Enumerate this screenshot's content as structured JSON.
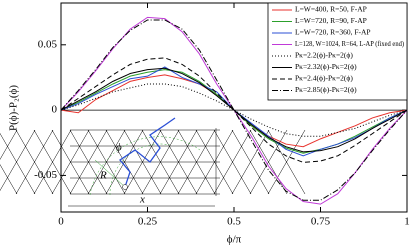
{
  "chart_data": {
    "type": "line",
    "xlabel": "ϕ/π",
    "ylabel": "P(ϕ)-P₂(ϕ)",
    "x": [
      0,
      0.05,
      0.1,
      0.15,
      0.2,
      0.25,
      0.3,
      0.35,
      0.4,
      0.45,
      0.5,
      0.55,
      0.6,
      0.65,
      0.7,
      0.75,
      0.8,
      0.85,
      0.9,
      0.95,
      1
    ],
    "xlim": [
      0,
      1
    ],
    "xticks": [
      0,
      0.25,
      0.5,
      0.75,
      1
    ],
    "ylim": [
      -0.078,
      0.082
    ],
    "yticks": [
      -0.05,
      0,
      0.05
    ],
    "legend": "upper right",
    "annotations": [
      "ϕ",
      "R",
      "x"
    ],
    "series": [
      {
        "name": "L=W=400, R=50, F-AP",
        "color": "#e8322c",
        "dash": "solid",
        "values": [
          0,
          -0.002,
          0.008,
          0.015,
          0.022,
          0.025,
          0.027,
          0.024,
          0.02,
          0.012,
          0,
          -0.012,
          -0.02,
          -0.026,
          -0.028,
          -0.022,
          -0.017,
          -0.012,
          -0.006,
          -0.002,
          0
        ]
      },
      {
        "name": "L=W=720, R=90, F-AP",
        "color": "#2ca02c",
        "dash": "solid",
        "values": [
          0,
          0.006,
          0.013,
          0.02,
          0.026,
          0.029,
          0.031,
          0.029,
          0.022,
          0.012,
          0,
          -0.012,
          -0.022,
          -0.029,
          -0.033,
          -0.03,
          -0.026,
          -0.02,
          -0.013,
          -0.006,
          0
        ]
      },
      {
        "name": "L=W=720, R=360, F-AP",
        "color": "#2b4fd6",
        "dash": "solid",
        "values": [
          0,
          0.005,
          0.012,
          0.018,
          0.024,
          0.026,
          0.033,
          0.025,
          0.02,
          0.014,
          0,
          -0.01,
          -0.02,
          -0.03,
          -0.035,
          -0.03,
          -0.026,
          -0.021,
          -0.014,
          -0.006,
          0
        ]
      },
      {
        "name": "L=128, W=1024, R=64, L-AP (fixed end)",
        "color": "#c03ad8",
        "dash": "solid",
        "values": [
          0,
          0.014,
          0.03,
          0.047,
          0.062,
          0.071,
          0.07,
          0.06,
          0.043,
          0.02,
          0,
          -0.02,
          -0.043,
          -0.06,
          -0.07,
          -0.072,
          -0.064,
          -0.048,
          -0.03,
          -0.014,
          0
        ]
      },
      {
        "name": "Pκ=2.2(ϕ)-Pκ=2(ϕ)",
        "color": "#000000",
        "dash": "dotted",
        "values": [
          0,
          0.004,
          0.009,
          0.014,
          0.017,
          0.02,
          0.02,
          0.018,
          0.013,
          0.007,
          0,
          -0.007,
          -0.013,
          -0.018,
          -0.02,
          -0.02,
          -0.017,
          -0.014,
          -0.009,
          -0.004,
          0
        ]
      },
      {
        "name": "Pκ=2.32(ϕ)-Pκ=2(ϕ)",
        "color": "#000000",
        "dash": "solid",
        "values": [
          0,
          0.007,
          0.014,
          0.022,
          0.028,
          0.031,
          0.032,
          0.028,
          0.021,
          0.011,
          0,
          -0.011,
          -0.021,
          -0.028,
          -0.032,
          -0.031,
          -0.028,
          -0.022,
          -0.014,
          -0.007,
          0
        ]
      },
      {
        "name": "Pκ=2.4(ϕ)-Pκ=2(ϕ)",
        "color": "#000000",
        "dash": "dashed",
        "values": [
          0,
          0.009,
          0.018,
          0.027,
          0.035,
          0.039,
          0.04,
          0.035,
          0.026,
          0.013,
          0,
          -0.013,
          -0.026,
          -0.035,
          -0.04,
          -0.039,
          -0.035,
          -0.027,
          -0.018,
          -0.009,
          0
        ]
      },
      {
        "name": "Pκ=2.85(ϕ)-Pκ=2(ϕ)",
        "color": "#000000",
        "dash": "dashdot",
        "values": [
          0,
          0.015,
          0.031,
          0.048,
          0.061,
          0.069,
          0.069,
          0.062,
          0.046,
          0.023,
          0,
          -0.023,
          -0.046,
          -0.062,
          -0.069,
          -0.069,
          -0.061,
          -0.048,
          -0.031,
          -0.015,
          0
        ]
      }
    ]
  }
}
